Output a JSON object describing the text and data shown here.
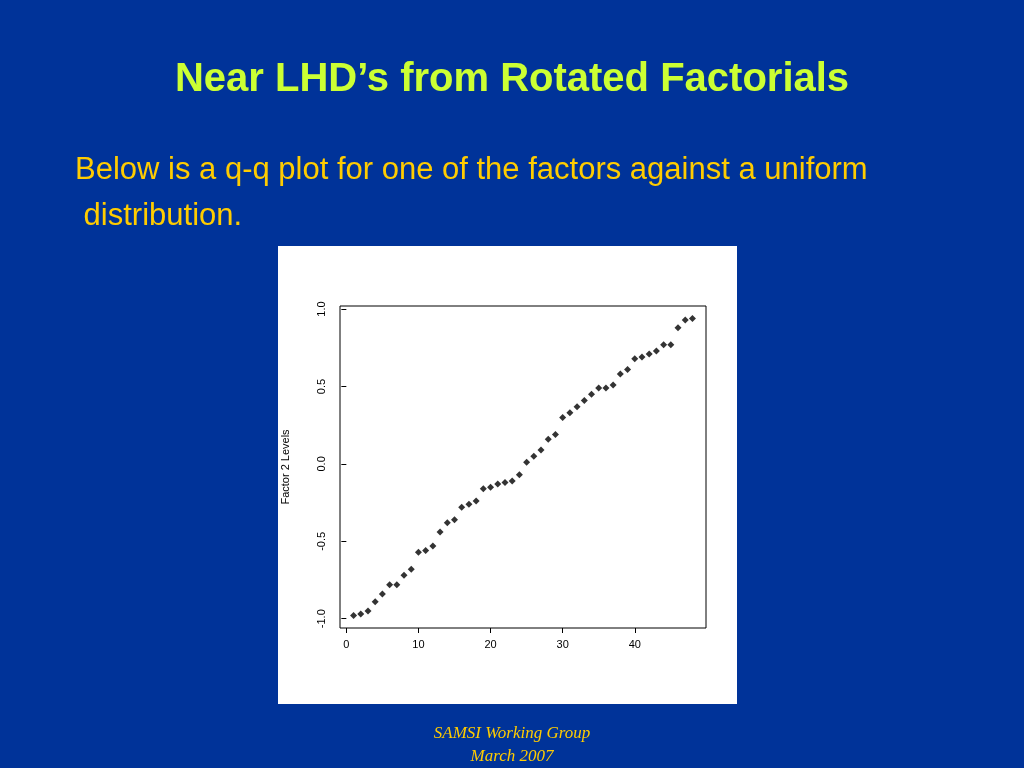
{
  "chart_data": {
    "type": "scatter",
    "title": "Near LHD’s from Rotated Factorials",
    "subtitle": "Below is a q-q plot for one of the factors against a uniform distribution.",
    "ylabel": "Factor 2 Levels",
    "x": [
      1,
      2,
      3,
      4,
      5,
      6,
      7,
      8,
      9,
      10,
      11,
      12,
      13,
      14,
      15,
      16,
      17,
      18,
      19,
      20,
      21,
      22,
      23,
      24,
      25,
      26,
      27,
      28,
      29,
      30,
      31,
      32,
      33,
      34,
      35,
      36,
      37,
      38,
      39,
      40,
      41,
      42,
      43,
      44,
      45,
      46,
      47,
      48
    ],
    "values": [
      -0.98,
      -0.97,
      -0.95,
      -0.89,
      -0.84,
      -0.78,
      -0.78,
      -0.72,
      -0.68,
      -0.57,
      -0.56,
      -0.53,
      -0.44,
      -0.38,
      -0.36,
      -0.28,
      -0.26,
      -0.24,
      -0.16,
      -0.15,
      -0.13,
      -0.12,
      -0.11,
      -0.07,
      0.01,
      0.05,
      0.09,
      0.16,
      0.19,
      0.3,
      0.33,
      0.37,
      0.41,
      0.45,
      0.49,
      0.49,
      0.51,
      0.58,
      0.61,
      0.68,
      0.69,
      0.71,
      0.73,
      0.77,
      0.77,
      0.88,
      0.93,
      0.94
    ],
    "color": "#000000",
    "marker": "diamond",
    "xlim": [
      -0.88,
      49.88
    ],
    "xticks": [
      0,
      10,
      20,
      30,
      40
    ],
    "ylim": [
      -1.06,
      1.02
    ],
    "yticks": [
      {
        "value": -1,
        "label": "-1.0"
      },
      {
        "value": -0.5,
        "label": "-0.5"
      },
      {
        "value": 0,
        "label": "0.0"
      },
      {
        "value": 0.5,
        "label": "0.5"
      },
      {
        "value": 1,
        "label": "1.0"
      }
    ],
    "annotations": [
      "SAMSI Working Group",
      "March 2007"
    ]
  }
}
